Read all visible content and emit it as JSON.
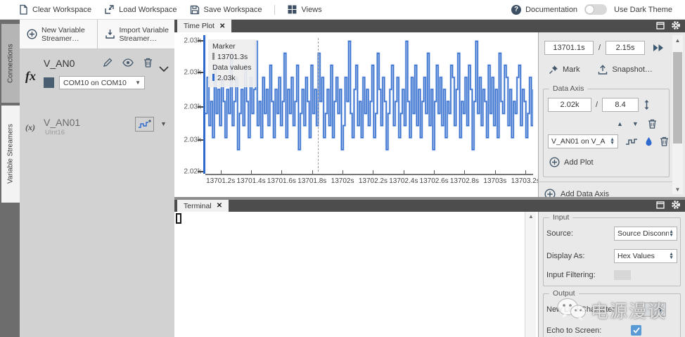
{
  "toolbar": {
    "clear_label": "Clear Workspace",
    "load_label": "Load Workspace",
    "save_label": "Save Workspace",
    "views_label": "Views",
    "documentation_label": "Documentation",
    "dark_theme_label": "Use Dark Theme"
  },
  "side_tabs": {
    "connections": "Connections",
    "variable_streamers": "Variable Streamers"
  },
  "streamers": {
    "new_label": "New Variable Streamer…",
    "import_label": "Import Variable Streamer…",
    "streamer_icon": "fx",
    "streamer_name": "V_AN0",
    "connection_value": "COM10 on COM10",
    "variable_icon": "(x)",
    "variable_name": "V_AN01",
    "variable_type": "UInt16"
  },
  "time_plot": {
    "tab_label": "Time Plot",
    "close_glyph": "✕",
    "start_value": "13701.1s",
    "separator": "/",
    "window_value": "2.15s",
    "mark_label": "Mark",
    "snapshot_label": "Snapshot…",
    "data_axis_legend": "Data Axis",
    "axis_min_value": "2.02k",
    "axis_range_value": "8.4",
    "plot_select_value": "V_AN01 on V_A",
    "add_plot_label": "Add Plot",
    "add_data_axis_label": "Add Data Axis",
    "tooltip": {
      "title": "Marker",
      "time": "13701.3s",
      "subtitle": "Data values",
      "value": "2.03k"
    }
  },
  "terminal": {
    "tab_label": "Terminal",
    "close_glyph": "✕",
    "input_legend": "Input",
    "source_label": "Source:",
    "source_value": "Source Disconn",
    "display_label": "Display As:",
    "display_value": "Hex Values",
    "filtering_label": "Input Filtering:",
    "output_legend": "Output",
    "newline_label": "New Line Character:",
    "echo_label": "Echo to Screen:",
    "echo_checked": true
  },
  "watermark": {
    "text": "电源漫谈"
  },
  "colors": {
    "accent_blue": "#2e6ace",
    "icon_slate": "#3d4f63",
    "marker_gray": "#8a8a8a"
  },
  "chart_data": {
    "type": "line",
    "title": "Time Plot",
    "series_name": "V_AN01 on V_AN0",
    "x_range": [
      13701.1,
      13703.25
    ],
    "y_range": [
      2023,
      2034.5
    ],
    "x_tick_values": [
      13701.2,
      13701.4,
      13701.6,
      13701.8,
      13702,
      13702.2,
      13702.4,
      13702.6,
      13702.8,
      13703,
      13703.2
    ],
    "x_tick_labels": [
      "13701.2s",
      "13701.4s",
      "13701.6s",
      "13701.8s",
      "13702s",
      "13702.2s",
      "13702.4s",
      "13702.6s",
      "13702.8s",
      "13703s",
      "13703.2s"
    ],
    "y_tick_labels": [
      "2.03k",
      "2.03k",
      "2.03k",
      "2.03k",
      "2.02k"
    ],
    "marker_time": 13701.3,
    "marker_value_label": "2.03k",
    "dashed_line_x": 13701.84,
    "grid": false,
    "samples": [
      2028,
      2031,
      2027,
      2029,
      2026,
      2032,
      2028,
      2030,
      2027,
      2031,
      2029,
      2026,
      2030,
      2028,
      2033,
      2027,
      2029,
      2031,
      2025,
      2028,
      2030,
      2027,
      2032,
      2029,
      2026,
      2031,
      2028,
      2030,
      2034,
      2027,
      2029,
      2026,
      2031,
      2028,
      2030,
      2027,
      2032,
      2029,
      2026,
      2030,
      2028,
      2031,
      2027,
      2029,
      2033,
      2026,
      2030,
      2028,
      2031,
      2027,
      2029,
      2032,
      2025,
      2028,
      2030,
      2027,
      2031,
      2029,
      2026,
      2032,
      2028,
      2030,
      2027,
      2033,
      2029,
      2031,
      2026,
      2028,
      2030,
      2027,
      2032,
      2026,
      2029,
      2031,
      2028,
      2030,
      2025,
      2027,
      2031,
      2029,
      2034,
      2028,
      2026,
      2030,
      2032,
      2027,
      2029,
      2026,
      2031,
      2028,
      2030,
      2027,
      2029,
      2032,
      2026,
      2028,
      2033,
      2030,
      2027,
      2031,
      2029,
      2025,
      2028,
      2030,
      2032,
      2027,
      2029,
      2031,
      2026,
      2028,
      2030,
      2027,
      2034,
      2029,
      2026,
      2031,
      2028,
      2032,
      2027,
      2030,
      2026,
      2029,
      2031,
      2028,
      2033,
      2027,
      2030,
      2025,
      2029,
      2032,
      2028,
      2031,
      2027,
      2030,
      2026,
      2029,
      2028,
      2032,
      2031,
      2027,
      2030,
      2033,
      2026,
      2029,
      2028,
      2031,
      2027,
      2032,
      2030,
      2025,
      2029,
      2034,
      2028,
      2031,
      2027,
      2030,
      2029,
      2026,
      2032,
      2028,
      2031,
      2027,
      2030,
      2026,
      2033,
      2029,
      2028,
      2032,
      2031,
      2027,
      2030,
      2026,
      2029,
      2028,
      2031,
      2032,
      2027,
      2030,
      2029,
      2026,
      2028,
      2031,
      2027,
      2030
    ]
  }
}
